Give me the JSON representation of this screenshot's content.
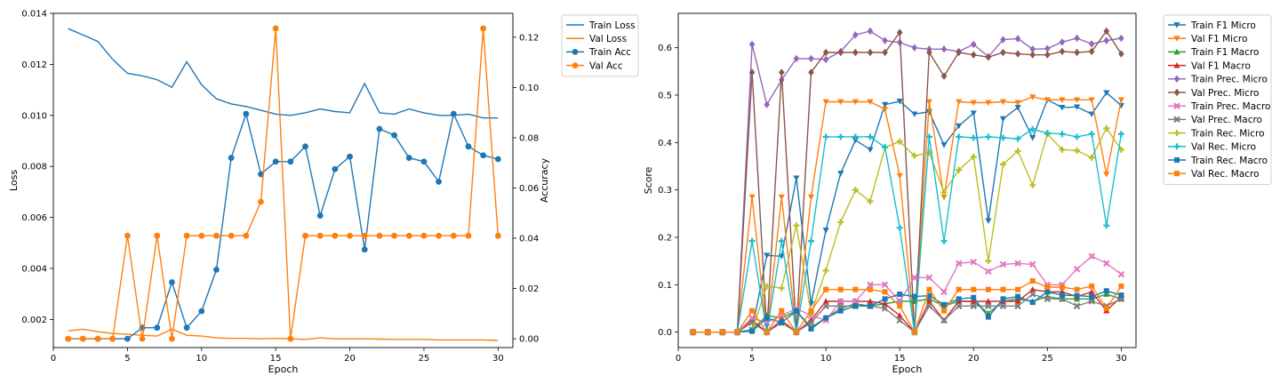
{
  "chart_data": [
    {
      "type": "line",
      "xlabel": "Epoch",
      "ylabel": "Loss",
      "y2label": "Accuracy",
      "xlim": [
        0,
        31
      ],
      "ylim": [
        0.0009,
        0.014
      ],
      "y2lim": [
        -0.0035,
        0.1295
      ],
      "xticks": [
        0,
        5,
        10,
        15,
        20,
        25,
        30
      ],
      "yticks": [
        0.002,
        0.004,
        0.006,
        0.008,
        0.01,
        0.012,
        0.014
      ],
      "ytick_labels": [
        "0.002",
        "0.004",
        "0.006",
        "0.008",
        "0.010",
        "0.012",
        "0.014"
      ],
      "y2ticks": [
        0.0,
        0.02,
        0.04,
        0.06,
        0.08,
        0.1,
        0.12
      ],
      "y2tick_labels": [
        "0.00",
        "0.02",
        "0.04",
        "0.06",
        "0.08",
        "0.10",
        "0.12"
      ],
      "legend_position": "outside-right",
      "x": [
        1,
        2,
        3,
        4,
        5,
        6,
        7,
        8,
        9,
        10,
        11,
        12,
        13,
        14,
        15,
        16,
        17,
        18,
        19,
        20,
        21,
        22,
        23,
        24,
        25,
        26,
        27,
        28,
        29,
        30
      ],
      "series": [
        {
          "name": "Train Loss",
          "axis": "left",
          "color": "#1f77b4",
          "marker": "none",
          "values": [
            0.0134,
            0.01315,
            0.0129,
            0.0122,
            0.01165,
            0.01155,
            0.0114,
            0.0111,
            0.0121,
            0.0112,
            0.01065,
            0.01045,
            0.01035,
            0.0102,
            0.01005,
            0.01,
            0.0101,
            0.01025,
            0.01015,
            0.0101,
            0.01125,
            0.0101,
            0.01005,
            0.01025,
            0.0101,
            0.01,
            0.01,
            0.01005,
            0.0099,
            0.0099
          ]
        },
        {
          "name": "Val Loss",
          "axis": "left",
          "color": "#ff7f0e",
          "marker": "none",
          "values": [
            0.00155,
            0.00162,
            0.00152,
            0.00145,
            0.00142,
            0.00138,
            0.00135,
            0.00162,
            0.00138,
            0.00135,
            0.00128,
            0.00126,
            0.00126,
            0.00124,
            0.00126,
            0.00124,
            0.00122,
            0.00128,
            0.00124,
            0.00124,
            0.00124,
            0.00123,
            0.00122,
            0.00122,
            0.00122,
            0.0012,
            0.0012,
            0.0012,
            0.0012,
            0.00118
          ]
        },
        {
          "name": "Train Acc",
          "axis": "right",
          "color": "#1f77b4",
          "marker": "circle",
          "values": [
            0,
            0,
            0,
            0,
            0,
            0.0044,
            0.0044,
            0.0225,
            0.0044,
            0.011,
            0.0275,
            0.072,
            0.0895,
            0.0655,
            0.0705,
            0.0705,
            0.0765,
            0.049,
            0.0675,
            0.0725,
            0.0355,
            0.0835,
            0.081,
            0.072,
            0.0705,
            0.0625,
            0.0895,
            0.0765,
            0.073,
            0.0715
          ]
        },
        {
          "name": "Val Acc",
          "axis": "right",
          "color": "#ff7f0e",
          "marker": "circle",
          "values": [
            0,
            0,
            0,
            0,
            0.041,
            0,
            0.041,
            0,
            0.041,
            0.041,
            0.041,
            0.041,
            0.041,
            0.0545,
            0.1235,
            0,
            0.041,
            0.041,
            0.041,
            0.041,
            0.041,
            0.041,
            0.041,
            0.041,
            0.041,
            0.041,
            0.041,
            0.041,
            0.1235,
            0.041
          ]
        }
      ]
    },
    {
      "type": "line",
      "xlabel": "Epoch",
      "ylabel": "Score",
      "xlim": [
        0,
        31
      ],
      "ylim": [
        -0.0325,
        0.6725
      ],
      "xticks": [
        0,
        5,
        10,
        15,
        20,
        25,
        30
      ],
      "yticks": [
        0.0,
        0.1,
        0.2,
        0.3,
        0.4,
        0.5,
        0.6
      ],
      "ytick_labels": [
        "0.0",
        "0.1",
        "0.2",
        "0.3",
        "0.4",
        "0.5",
        "0.6"
      ],
      "legend_position": "outside-right",
      "x": [
        1,
        2,
        3,
        4,
        5,
        6,
        7,
        8,
        9,
        10,
        11,
        12,
        13,
        14,
        15,
        16,
        17,
        18,
        19,
        20,
        21,
        22,
        23,
        24,
        25,
        26,
        27,
        28,
        29,
        30
      ],
      "series": [
        {
          "name": "Train F1 Micro",
          "color": "#1f77b4",
          "marker": "tri-down",
          "values": [
            0,
            0,
            0,
            0,
            0.005,
            0.162,
            0.16,
            0.325,
            0.06,
            0.215,
            0.335,
            0.405,
            0.385,
            0.48,
            0.487,
            0.46,
            0.465,
            0.395,
            0.435,
            0.462,
            0.235,
            0.45,
            0.474,
            0.41,
            0.49,
            0.474,
            0.475,
            0.46,
            0.505,
            0.478
          ]
        },
        {
          "name": "Val F1 Micro",
          "color": "#ff7f0e",
          "marker": "tri-down",
          "values": [
            0,
            0,
            0,
            0,
            0.285,
            0,
            0.285,
            0,
            0.285,
            0.486,
            0.486,
            0.486,
            0.486,
            0.47,
            0.33,
            0,
            0.486,
            0.285,
            0.486,
            0.484,
            0.484,
            0.486,
            0.484,
            0.496,
            0.49,
            0.49,
            0.49,
            0.49,
            0.333,
            0.49
          ]
        },
        {
          "name": "Train F1 Macro",
          "color": "#2ca02c",
          "marker": "tri-up",
          "values": [
            0,
            0,
            0,
            0,
            0.005,
            0.035,
            0.03,
            0.045,
            0.01,
            0.03,
            0.05,
            0.06,
            0.055,
            0.06,
            0.065,
            0.065,
            0.07,
            0.055,
            0.065,
            0.065,
            0.04,
            0.065,
            0.07,
            0.065,
            0.075,
            0.07,
            0.07,
            0.07,
            0.08,
            0.07
          ]
        },
        {
          "name": "Val F1 Macro",
          "color": "#d62728",
          "marker": "tri-up",
          "values": [
            0,
            0,
            0,
            0,
            0.025,
            0,
            0.025,
            0,
            0.025,
            0.065,
            0.065,
            0.065,
            0.065,
            0.06,
            0.035,
            0,
            0.065,
            0.025,
            0.065,
            0.065,
            0.065,
            0.065,
            0.065,
            0.09,
            0.085,
            0.085,
            0.075,
            0.085,
            0.045,
            0.075
          ]
        },
        {
          "name": "Train Prec. Micro",
          "color": "#9467bd",
          "marker": "diamond",
          "values": [
            0,
            0,
            0,
            0,
            0.607,
            0.48,
            0.532,
            0.577,
            0.577,
            0.575,
            0.592,
            0.627,
            0.635,
            0.615,
            0.611,
            0.6,
            0.597,
            0.597,
            0.592,
            0.607,
            0.581,
            0.617,
            0.619,
            0.597,
            0.598,
            0.612,
            0.62,
            0.608,
            0.615,
            0.62
          ]
        },
        {
          "name": "Val Prec. Micro",
          "color": "#8c564b",
          "marker": "diamond",
          "values": [
            0,
            0,
            0,
            0,
            0.548,
            0,
            0.548,
            0,
            0.548,
            0.59,
            0.59,
            0.59,
            0.59,
            0.59,
            0.632,
            0,
            0.59,
            0.54,
            0.59,
            0.585,
            0.58,
            0.59,
            0.587,
            0.585,
            0.585,
            0.592,
            0.59,
            0.592,
            0.635,
            0.587
          ]
        },
        {
          "name": "Train Prec. Macro",
          "color": "#e377c2",
          "marker": "x",
          "values": [
            0,
            0,
            0,
            0,
            0.03,
            0.02,
            0.035,
            0.05,
            0.035,
            0.025,
            0.065,
            0.065,
            0.1,
            0.1,
            0.065,
            0.115,
            0.115,
            0.085,
            0.145,
            0.148,
            0.128,
            0.143,
            0.145,
            0.143,
            0.1,
            0.1,
            0.133,
            0.16,
            0.145,
            0.122
          ]
        },
        {
          "name": "Val Prec. Macro",
          "color": "#7f7f7f",
          "marker": "x",
          "values": [
            0,
            0,
            0,
            0,
            0.02,
            0,
            0.02,
            0,
            0.02,
            0.055,
            0.055,
            0.055,
            0.055,
            0.05,
            0.025,
            0,
            0.055,
            0.025,
            0.055,
            0.055,
            0.055,
            0.055,
            0.055,
            0.08,
            0.07,
            0.07,
            0.055,
            0.065,
            0.055,
            0.07
          ]
        },
        {
          "name": "Train Rec. Micro",
          "color": "#bcbd22",
          "marker": "plus",
          "values": [
            0,
            0,
            0,
            0,
            0.003,
            0.097,
            0.093,
            0.225,
            0.04,
            0.13,
            0.232,
            0.3,
            0.276,
            0.39,
            0.402,
            0.372,
            0.379,
            0.295,
            0.342,
            0.37,
            0.15,
            0.354,
            0.382,
            0.31,
            0.418,
            0.385,
            0.383,
            0.368,
            0.43,
            0.385
          ]
        },
        {
          "name": "Val Rec. Micro",
          "color": "#17becf",
          "marker": "plus",
          "values": [
            0,
            0,
            0,
            0,
            0.192,
            0,
            0.192,
            0,
            0.192,
            0.412,
            0.412,
            0.412,
            0.412,
            0.39,
            0.22,
            0,
            0.412,
            0.192,
            0.412,
            0.41,
            0.412,
            0.41,
            0.408,
            0.428,
            0.42,
            0.418,
            0.412,
            0.418,
            0.225,
            0.418
          ]
        },
        {
          "name": "Train Rec. Macro",
          "color": "#1f77b4",
          "marker": "square",
          "values": [
            0,
            0,
            0,
            0,
            0.002,
            0.03,
            0.02,
            0.045,
            0.007,
            0.03,
            0.045,
            0.055,
            0.055,
            0.07,
            0.08,
            0.075,
            0.077,
            0.058,
            0.07,
            0.073,
            0.032,
            0.07,
            0.075,
            0.063,
            0.085,
            0.078,
            0.077,
            0.075,
            0.087,
            0.078
          ]
        },
        {
          "name": "Val Rec. Macro",
          "color": "#ff7f0e",
          "marker": "square",
          "values": [
            0,
            0,
            0,
            0,
            0.045,
            0,
            0.045,
            0,
            0.045,
            0.09,
            0.09,
            0.09,
            0.09,
            0.085,
            0.055,
            0,
            0.09,
            0.045,
            0.09,
            0.09,
            0.09,
            0.09,
            0.09,
            0.108,
            0.095,
            0.095,
            0.09,
            0.097,
            0.05,
            0.097
          ]
        }
      ]
    }
  ]
}
